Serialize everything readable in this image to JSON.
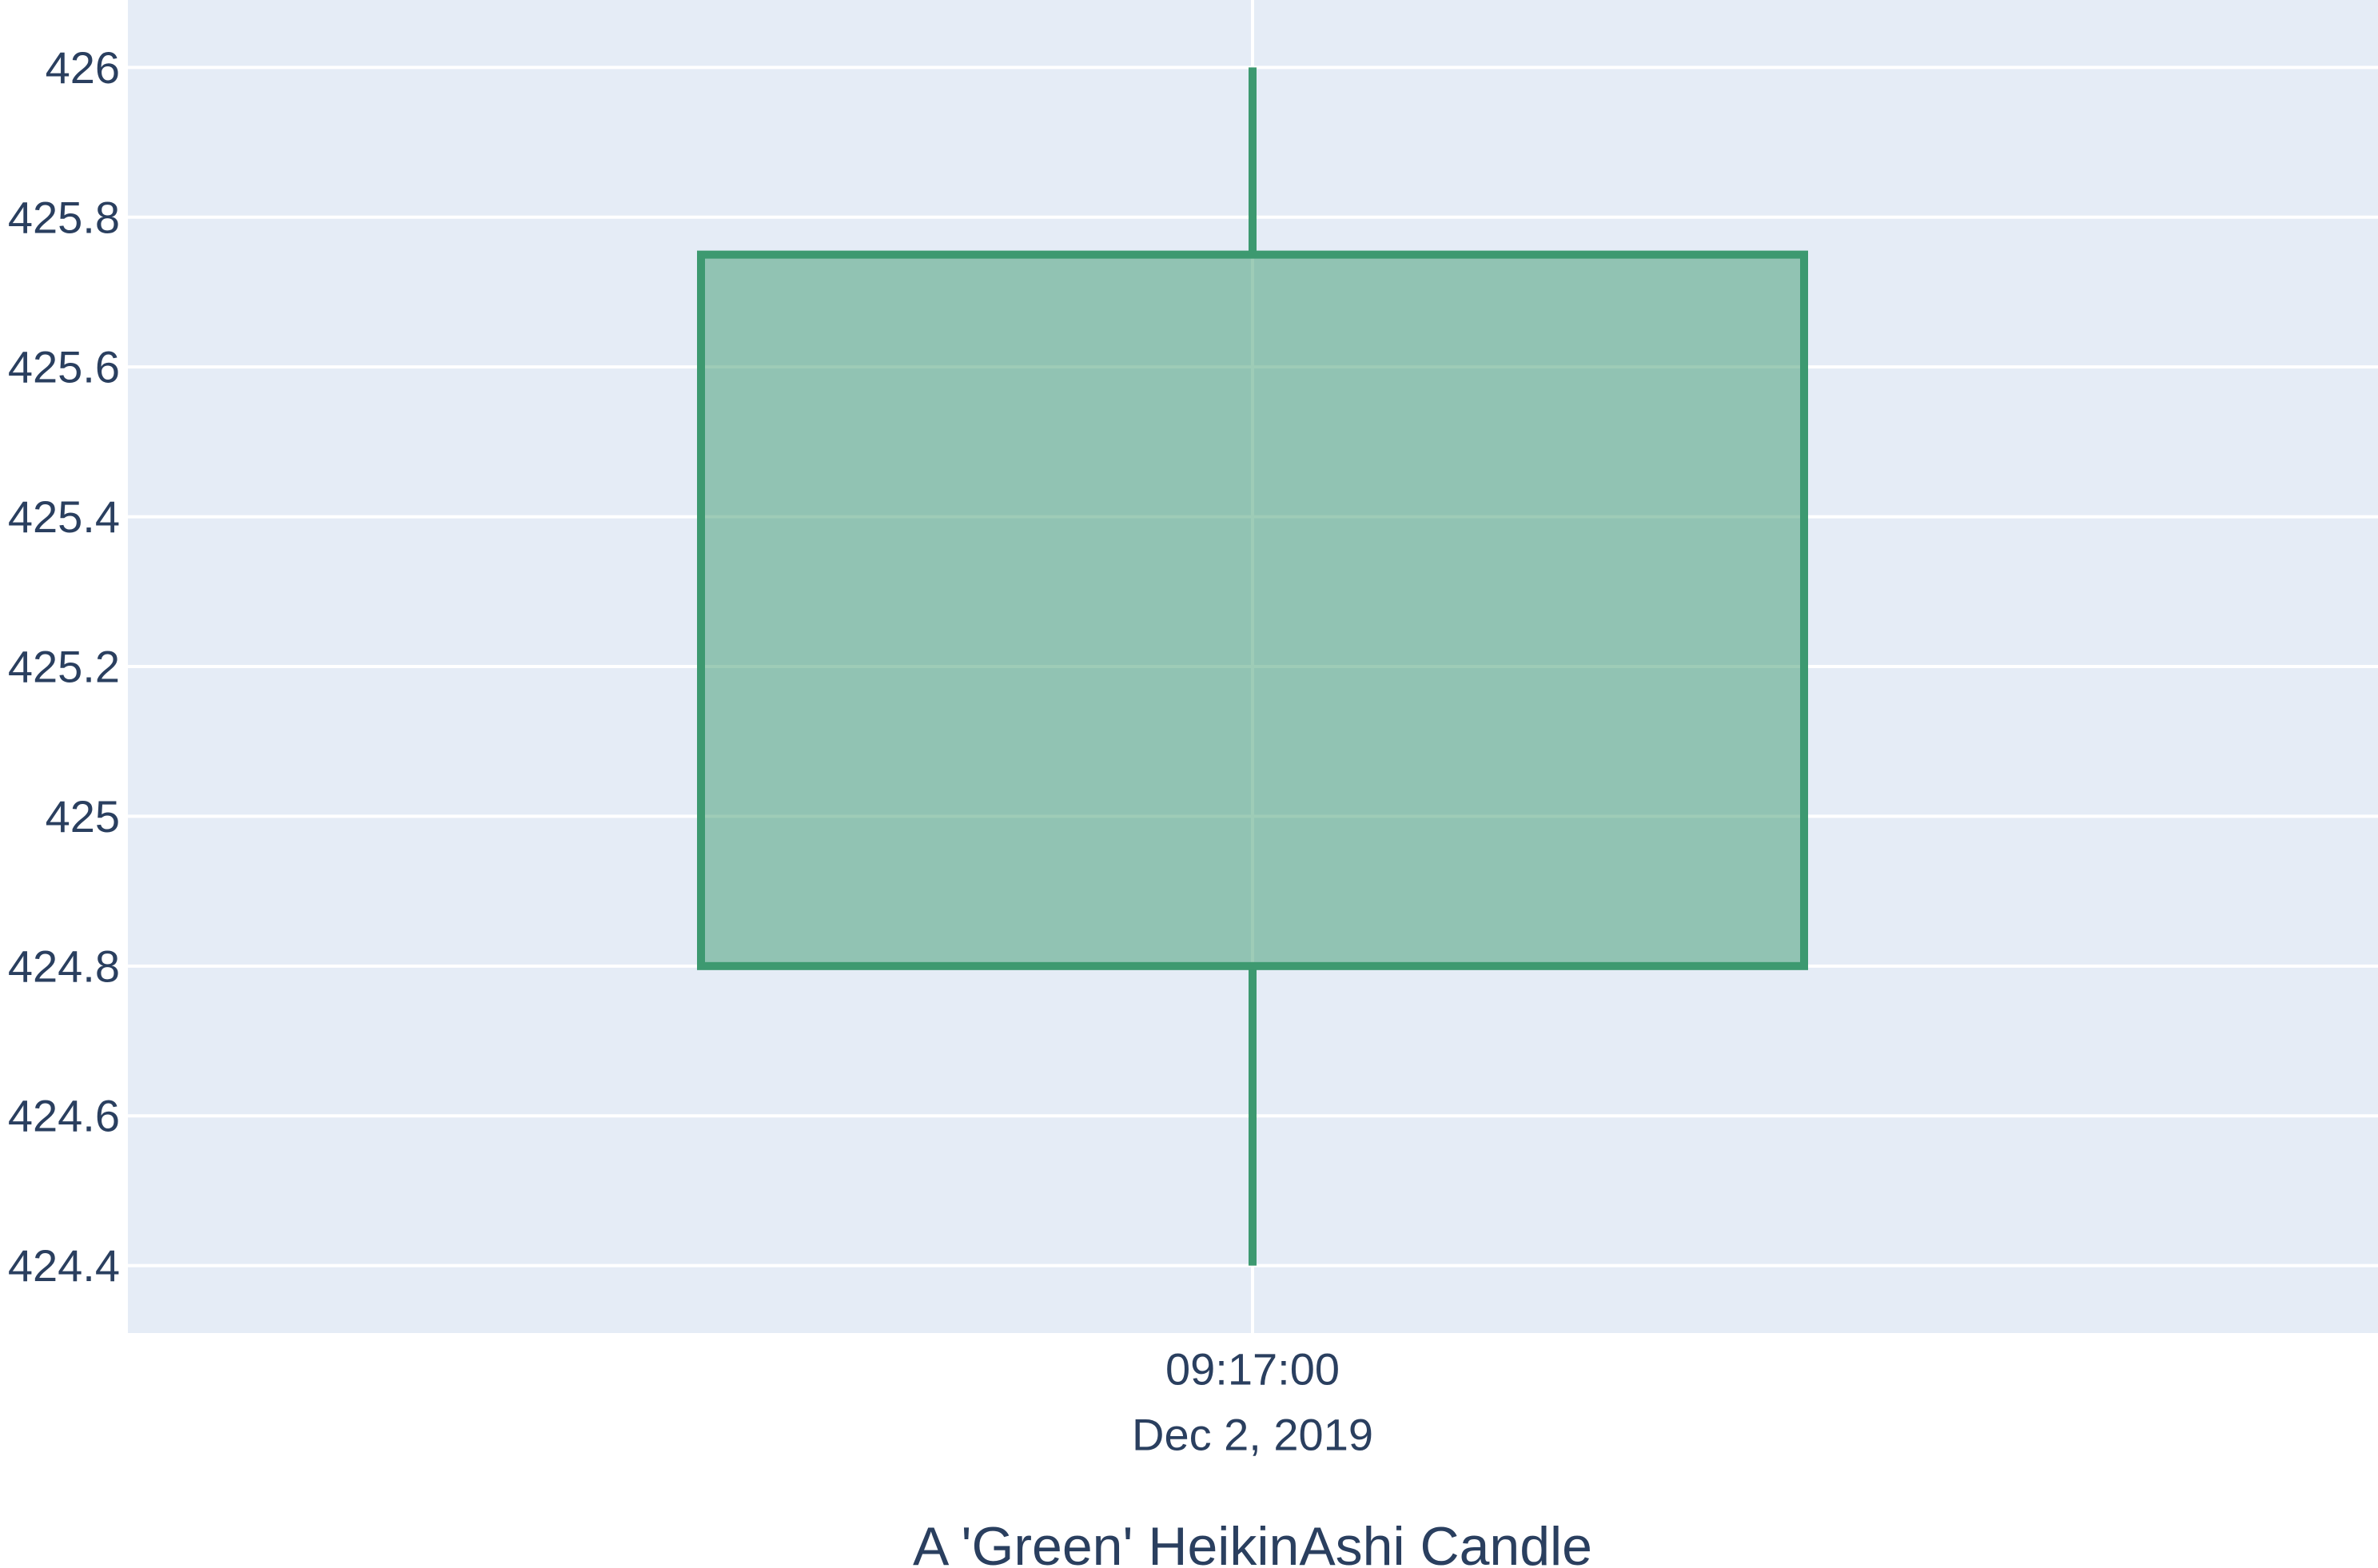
{
  "chart_data": {
    "type": "candlestick",
    "title": "A 'Green' HeikinAshi Candle",
    "xlabel": "",
    "ylabel": "",
    "x_tick": {
      "time": "09:17:00",
      "date": "Dec 2, 2019"
    },
    "y_ticks": [
      "424.4",
      "424.6",
      "424.8",
      "425",
      "425.2",
      "425.4",
      "425.6",
      "425.8",
      "426"
    ],
    "ylim": [
      424.31,
      426.09
    ],
    "grid": true,
    "candles": [
      {
        "x": "2019-12-02 09:17:00",
        "open": 424.8,
        "high": 426.0,
        "low": 424.4,
        "close": 425.75,
        "direction": "increasing"
      }
    ]
  },
  "colors": {
    "plot_background": "#e5ecf6",
    "grid": "#ffffff",
    "increasing_line": "#3d9970",
    "increasing_fill": "rgba(61,153,112,0.5)",
    "text": "#2a3f5f"
  }
}
